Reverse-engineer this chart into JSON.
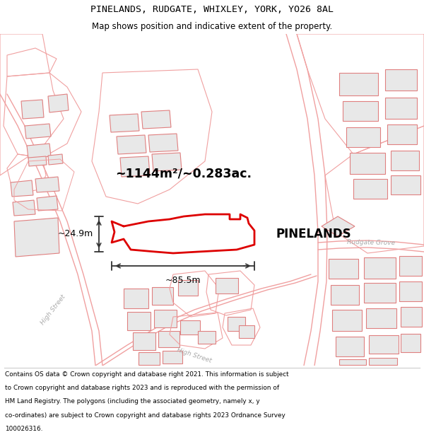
{
  "title_line1": "PINELANDS, RUDGATE, WHIXLEY, YORK, YO26 8AL",
  "title_line2": "Map shows position and indicative extent of the property.",
  "label_property": "PINELANDS",
  "label_area": "~1144m²/~0.283ac.",
  "label_width": "~85.5m",
  "label_height": "~24.9m",
  "footer_lines": [
    "Contains OS data © Crown copyright and database right 2021. This information is subject",
    "to Crown copyright and database rights 2023 and is reproduced with the permission of",
    "HM Land Registry. The polygons (including the associated geometry, namely x, y",
    "co-ordinates) are subject to Crown copyright and database rights 2023 Ordnance Survey",
    "100026316."
  ],
  "map_bg": "#ffffff",
  "building_fill": "#e8e8e8",
  "building_edge": "#e08080",
  "road_color": "#f0a0a0",
  "highlight_color": "#dd0000",
  "dim_arrow_color": "#333333",
  "street_label_color": "#aaaaaa",
  "text_color": "#000000",
  "header_bg": "#ffffff",
  "footer_bg": "#ffffff"
}
